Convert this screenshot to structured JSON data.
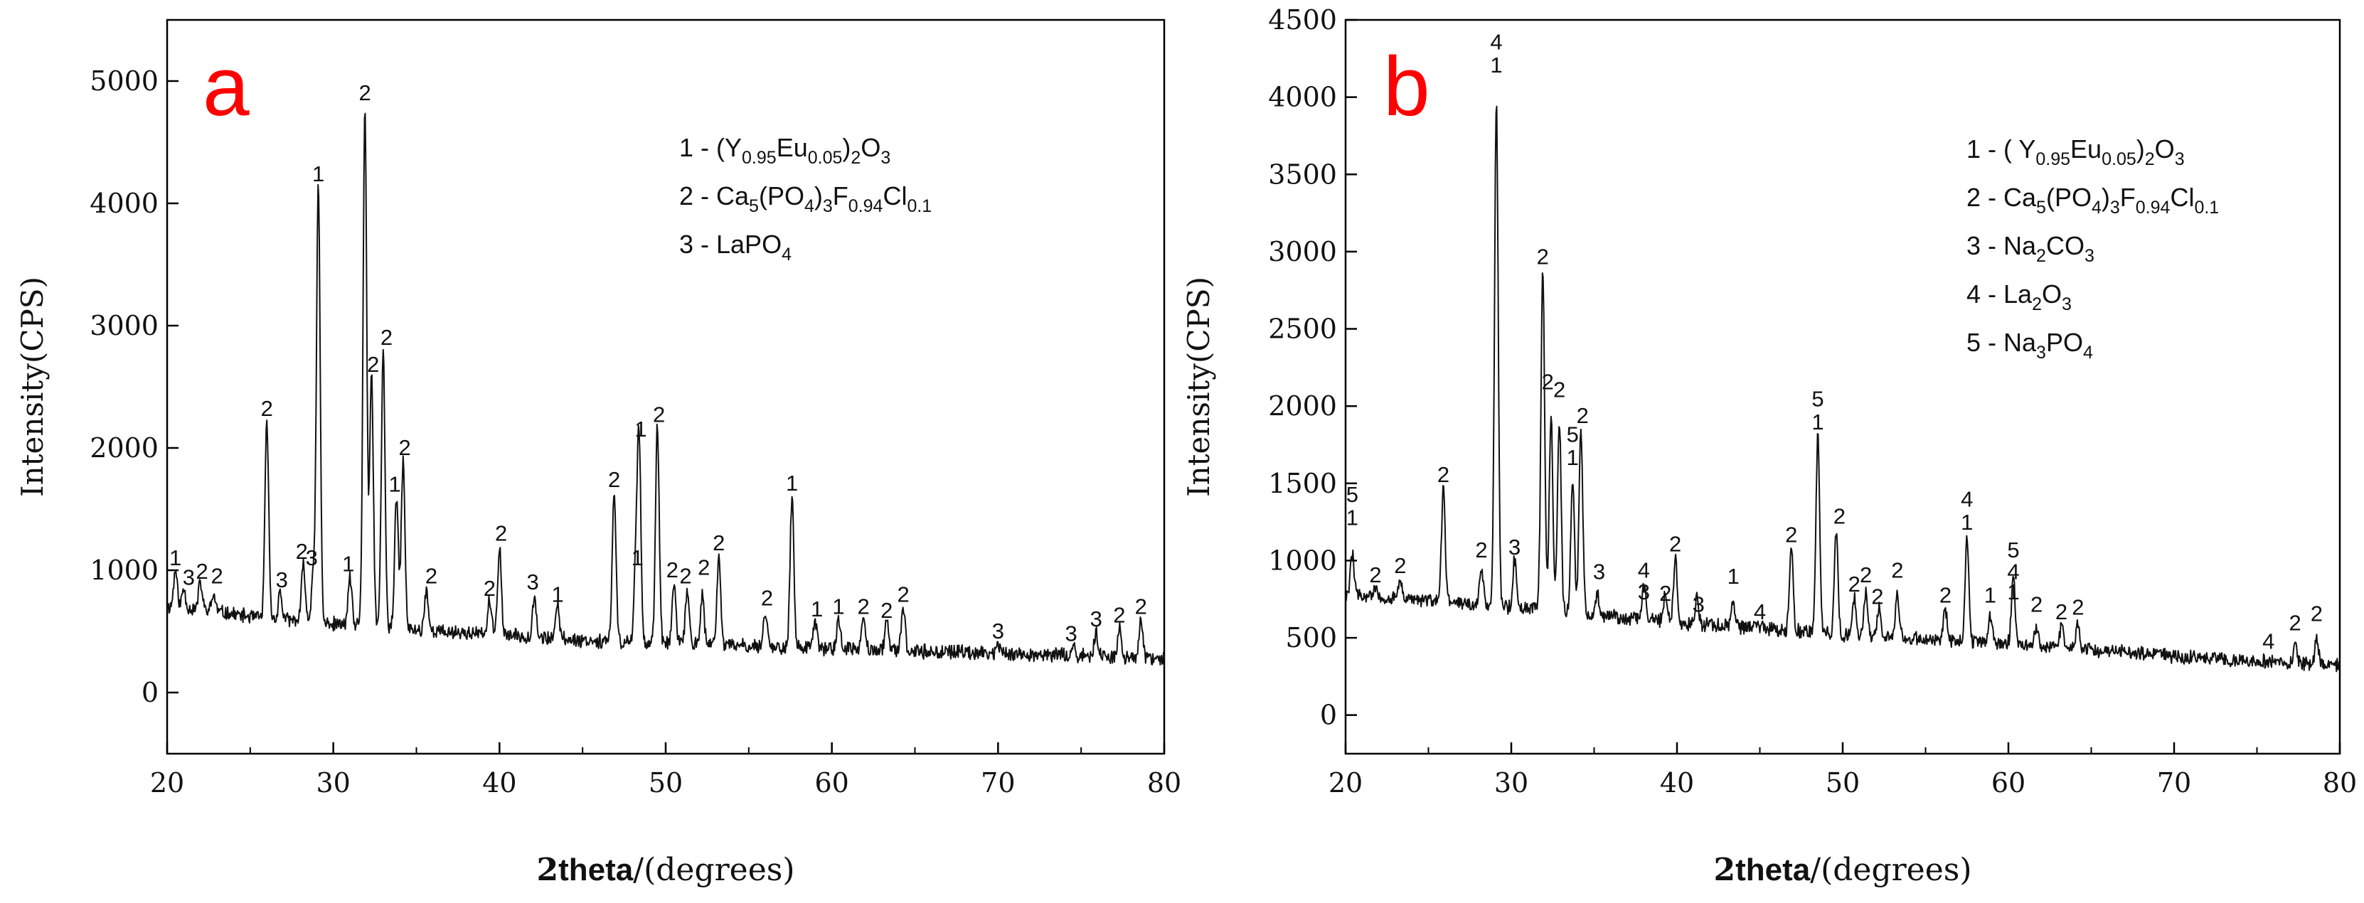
{
  "chart_data": [
    {
      "type": "line",
      "panel_letter": "a",
      "xlabel_prefix": "2",
      "xlabel_bold": "theta",
      "xlabel_suffix": "/(degrees)",
      "ylabel": "Intensity(CPS)",
      "xlim": [
        20,
        80
      ],
      "ylim": [
        -500,
        5500
      ],
      "xticks": [
        20,
        30,
        40,
        50,
        60,
        70,
        80
      ],
      "yticks": [
        0,
        1000,
        2000,
        3000,
        4000,
        5000
      ],
      "legend": [
        [
          "1 - (Y",
          {
            "sub": "0.95"
          },
          "Eu",
          {
            "sub": "0.05"
          },
          ")",
          {
            "sub": "2"
          },
          "O",
          {
            "sub": "3"
          }
        ],
        [
          "2 - Ca",
          {
            "sub": "5"
          },
          "(PO",
          {
            "sub": "4"
          },
          ")",
          {
            "sub": "3"
          },
          "F",
          {
            "sub": "0.94"
          },
          "Cl",
          {
            "sub": "0.1"
          }
        ],
        [
          "3 - LaPO",
          {
            "sub": "4"
          }
        ]
      ],
      "baseline": [
        [
          20,
          700
        ],
        [
          22,
          680
        ],
        [
          25,
          620
        ],
        [
          30,
          560
        ],
        [
          35,
          510
        ],
        [
          40,
          470
        ],
        [
          45,
          430
        ],
        [
          50,
          400
        ],
        [
          55,
          380
        ],
        [
          60,
          360
        ],
        [
          65,
          340
        ],
        [
          70,
          320
        ],
        [
          75,
          300
        ],
        [
          80,
          270
        ]
      ],
      "peaks": [
        [
          20.5,
          1000
        ],
        [
          21,
          850
        ],
        [
          22,
          900
        ],
        [
          22.8,
          800
        ],
        [
          26,
          2220
        ],
        [
          26.8,
          820
        ],
        [
          28.2,
          1050
        ],
        [
          28.8,
          1000
        ],
        [
          29.1,
          4140
        ],
        [
          31,
          950
        ],
        [
          31.9,
          4800
        ],
        [
          32.3,
          2580
        ],
        [
          33,
          2800
        ],
        [
          33.8,
          1600
        ],
        [
          34.2,
          1900
        ],
        [
          35.6,
          850
        ],
        [
          39.4,
          750
        ],
        [
          40,
          1200
        ],
        [
          42.1,
          800
        ],
        [
          43.5,
          700
        ],
        [
          46.9,
          1640
        ],
        [
          48.4,
          2050
        ],
        [
          48.2,
          1000
        ],
        [
          49.5,
          2170
        ],
        [
          50.5,
          900
        ],
        [
          51.3,
          850
        ],
        [
          52.2,
          800
        ],
        [
          53.2,
          1120
        ],
        [
          56,
          680
        ],
        [
          57.6,
          1610
        ],
        [
          59,
          580
        ],
        [
          60.4,
          600
        ],
        [
          61.9,
          600
        ],
        [
          63.3,
          570
        ],
        [
          64.3,
          700
        ],
        [
          70,
          400
        ],
        [
          74.5,
          380
        ],
        [
          75.9,
          500
        ],
        [
          77.3,
          530
        ],
        [
          78.6,
          600
        ]
      ],
      "peak_labels": [
        [
          "1",
          20.5,
          1030
        ],
        [
          "3",
          21.3,
          870
        ],
        [
          "2",
          22.1,
          920
        ],
        [
          "2",
          23,
          880
        ],
        [
          "2",
          26,
          2250
        ],
        [
          "3",
          26.9,
          850
        ],
        [
          "2",
          28.1,
          1080
        ],
        [
          "3",
          28.7,
          1030
        ],
        [
          "1",
          29.1,
          4170
        ],
        [
          "1",
          30.9,
          980
        ],
        [
          "2",
          31.9,
          4830
        ],
        [
          "2",
          32.4,
          2610
        ],
        [
          "2",
          33.2,
          2830
        ],
        [
          "1",
          33.7,
          1630
        ],
        [
          "2",
          34.3,
          1930
        ],
        [
          "2",
          35.9,
          880
        ],
        [
          "2",
          39.4,
          780
        ],
        [
          "2",
          40.1,
          1230
        ],
        [
          "3",
          42,
          830
        ],
        [
          "1",
          43.5,
          730
        ],
        [
          "2",
          46.9,
          1670
        ],
        [
          "1",
          48.5,
          2080
        ],
        [
          "1",
          48.3,
          1030
        ],
        [
          "2",
          49.6,
          2200
        ],
        [
          "2",
          50.4,
          930
        ],
        [
          "2",
          51.2,
          880
        ],
        [
          "2",
          52.3,
          950
        ],
        [
          "2",
          53.2,
          1150
        ],
        [
          "2",
          56.1,
          700
        ],
        [
          "1",
          57.6,
          1640
        ],
        [
          "1",
          59.1,
          610
        ],
        [
          "1",
          60.4,
          630
        ],
        [
          "2",
          61.9,
          630
        ],
        [
          "2",
          63.3,
          600
        ],
        [
          "2",
          64.3,
          730
        ],
        [
          "3",
          70,
          430
        ],
        [
          "3",
          74.4,
          410
        ],
        [
          "3",
          75.9,
          530
        ],
        [
          "2",
          77.3,
          560
        ],
        [
          "2",
          78.6,
          630
        ]
      ]
    },
    {
      "type": "line",
      "panel_letter": "b",
      "xlabel_prefix": "2",
      "xlabel_bold": "theta",
      "xlabel_suffix": "/(degrees)",
      "ylabel": "Intensity(CPS)",
      "xlim": [
        20,
        80
      ],
      "ylim": [
        -250,
        4500
      ],
      "xticks": [
        20,
        30,
        40,
        50,
        60,
        70,
        80
      ],
      "yticks": [
        0,
        500,
        1000,
        1500,
        2000,
        2500,
        3000,
        3500,
        4000,
        4500
      ],
      "legend": [
        [
          "1 - ( Y",
          {
            "sub": "0.95"
          },
          "Eu",
          {
            "sub": "0.05"
          },
          ")",
          {
            "sub": "2"
          },
          "O",
          {
            "sub": "3"
          }
        ],
        [
          "2 - Ca",
          {
            "sub": "5"
          },
          "(PO",
          {
            "sub": "4"
          },
          ")",
          {
            "sub": "3"
          },
          "F",
          {
            "sub": "0.94"
          },
          "Cl",
          {
            "sub": "0.1"
          }
        ],
        [
          "3 - Na",
          {
            "sub": "2"
          },
          "CO",
          {
            "sub": "3"
          }
        ],
        [
          "4 - La",
          {
            "sub": "2"
          },
          "O",
          {
            "sub": "3"
          }
        ],
        [
          "5 - Na",
          {
            "sub": "3"
          },
          "PO",
          {
            "sub": "4"
          }
        ]
      ],
      "baseline": [
        [
          20,
          780
        ],
        [
          22,
          760
        ],
        [
          25,
          740
        ],
        [
          30,
          700
        ],
        [
          35,
          650
        ],
        [
          40,
          600
        ],
        [
          45,
          560
        ],
        [
          50,
          520
        ],
        [
          55,
          490
        ],
        [
          60,
          460
        ],
        [
          65,
          420
        ],
        [
          70,
          380
        ],
        [
          75,
          350
        ],
        [
          80,
          320
        ]
      ],
      "peaks": [
        [
          20.4,
          1050
        ],
        [
          21.8,
          820
        ],
        [
          23.3,
          880
        ],
        [
          25.9,
          1470
        ],
        [
          28.2,
          950
        ],
        [
          29.1,
          3970
        ],
        [
          30.2,
          1000
        ],
        [
          31.9,
          2880
        ],
        [
          32.4,
          1950
        ],
        [
          32.9,
          1900
        ],
        [
          33.7,
          1530
        ],
        [
          34.2,
          1850
        ],
        [
          35.2,
          780
        ],
        [
          38,
          850
        ],
        [
          39.3,
          800
        ],
        [
          39.9,
          1020
        ],
        [
          41.2,
          750
        ],
        [
          43.4,
          730
        ],
        [
          44.8,
          600
        ],
        [
          46.9,
          1080
        ],
        [
          48.5,
          1810
        ],
        [
          49.6,
          1200
        ],
        [
          50.7,
          760
        ],
        [
          51.4,
          800
        ],
        [
          52.2,
          700
        ],
        [
          53.3,
          780
        ],
        [
          56.2,
          690
        ],
        [
          57.5,
          1160
        ],
        [
          58.9,
          650
        ],
        [
          60.3,
          900
        ],
        [
          61.7,
          580
        ],
        [
          63.2,
          570
        ],
        [
          64.2,
          600
        ],
        [
          75.7,
          330
        ],
        [
          77.3,
          450
        ],
        [
          78.6,
          490
        ]
      ],
      "peak_labels": [
        [
          "5",
          20.4,
          1370
        ],
        [
          "1",
          20.4,
          1220
        ],
        [
          "2",
          21.8,
          850
        ],
        [
          "2",
          23.3,
          910
        ],
        [
          "2",
          25.9,
          1500
        ],
        [
          "2",
          28.2,
          1010
        ],
        [
          "4",
          29.1,
          4300
        ],
        [
          "1",
          29.1,
          4150
        ],
        [
          "3",
          30.2,
          1030
        ],
        [
          "2",
          31.9,
          2910
        ],
        [
          "2",
          32.2,
          2100
        ],
        [
          "2",
          32.9,
          2050
        ],
        [
          "5",
          33.7,
          1760
        ],
        [
          "1",
          33.7,
          1610
        ],
        [
          "2",
          34.3,
          1880
        ],
        [
          "3",
          35.3,
          870
        ],
        [
          "4",
          38,
          880
        ],
        [
          "3",
          38,
          740
        ],
        [
          "2",
          39.3,
          730
        ],
        [
          "2",
          39.9,
          1050
        ],
        [
          "3",
          41.3,
          660
        ],
        [
          "1",
          43.4,
          840
        ],
        [
          "4",
          45,
          610
        ],
        [
          "2",
          46.9,
          1110
        ],
        [
          "5",
          48.5,
          1990
        ],
        [
          "1",
          48.5,
          1840
        ],
        [
          "2",
          49.8,
          1230
        ],
        [
          "2",
          50.7,
          790
        ],
        [
          "2",
          51.4,
          850
        ],
        [
          "2",
          52.1,
          710
        ],
        [
          "2",
          53.3,
          880
        ],
        [
          "2",
          56.2,
          720
        ],
        [
          "4",
          57.5,
          1340
        ],
        [
          "1",
          57.5,
          1190
        ],
        [
          "1",
          58.9,
          720
        ],
        [
          "5",
          60.3,
          1010
        ],
        [
          "4",
          60.3,
          870
        ],
        [
          "1",
          60.3,
          740
        ],
        [
          "2",
          61.7,
          660
        ],
        [
          "2",
          63.2,
          610
        ],
        [
          "2",
          64.2,
          640
        ],
        [
          "4",
          75.7,
          420
        ],
        [
          "2",
          77.3,
          540
        ],
        [
          "2",
          78.6,
          600
        ]
      ]
    }
  ]
}
